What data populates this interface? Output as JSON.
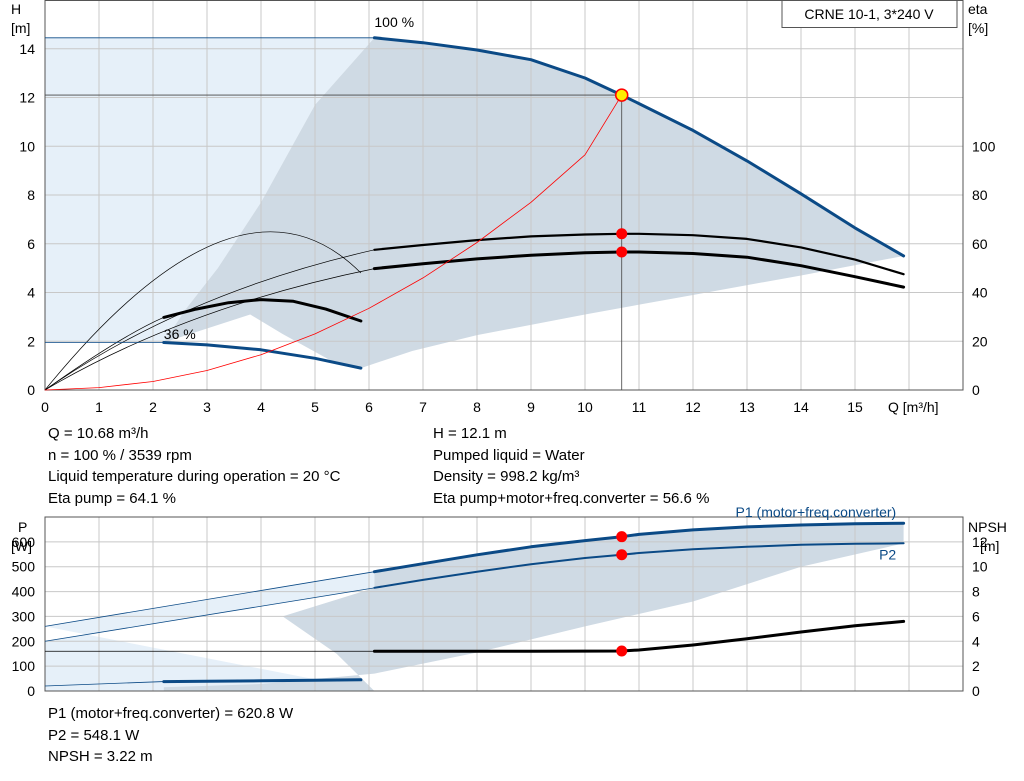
{
  "title": "CRNE 10-1, 3*240 V",
  "colors": {
    "blue": "#0b4a86",
    "area_dark": "#cfdae4",
    "area_light": "#e6f0f9",
    "grid": "#c8c8c8",
    "operating_point": "#ff0000",
    "duty_marker_fill": "#ffee00"
  },
  "info_top_left": [
    "Q = 10.68 m³/h",
    "n = 100 % / 3539 rpm",
    "Liquid temperature during operation = 20 °C",
    "Eta pump = 64.1 %"
  ],
  "info_top_right": [
    "H = 12.1 m",
    "Pumped liquid = Water",
    "Density = 998.2 kg/m³",
    "Eta pump+motor+freq.converter = 56.6 %"
  ],
  "info_bottom": [
    "P1 (motor+freq.converter) = 620.8 W",
    "P2 = 548.1 W",
    "NPSH = 3.22 m"
  ],
  "chart_data": [
    {
      "type": "line",
      "name": "head_efficiency",
      "xlabel": "Q [m³/h]",
      "ylabel": [
        "H",
        "[m]"
      ],
      "y2label": [
        "eta",
        "[%]"
      ],
      "xlim": [
        0,
        17
      ],
      "ylim": [
        0,
        16
      ],
      "y2lim": [
        0,
        160
      ],
      "x_ticks": [
        0,
        1,
        2,
        3,
        4,
        5,
        6,
        7,
        8,
        9,
        10,
        11,
        12,
        13,
        14,
        15
      ],
      "y_ticks": [
        0,
        2,
        4,
        6,
        8,
        10,
        12,
        14
      ],
      "y2_ticks": [
        0,
        20,
        40,
        60,
        80,
        100
      ],
      "grid": true,
      "annotations": [
        {
          "text": "100 %",
          "x": 6.1,
          "y": 14.9
        },
        {
          "text": "36 %",
          "x": 2.2,
          "y": 2.1
        }
      ],
      "series": [
        {
          "key": "H100",
          "axis": "left",
          "color": "#0b4a86",
          "x": [
            6.1,
            7,
            8,
            9,
            10,
            10.68,
            11,
            12,
            13,
            14,
            15,
            15.9
          ],
          "y": [
            14.45,
            14.25,
            13.95,
            13.55,
            12.8,
            12.1,
            11.75,
            10.65,
            9.4,
            8.05,
            6.65,
            5.5
          ]
        },
        {
          "key": "H36",
          "axis": "left",
          "color": "#0b4a86",
          "x": [
            2.2,
            3,
            4,
            5,
            5.85
          ],
          "y": [
            1.95,
            1.85,
            1.65,
            1.3,
            0.9
          ]
        },
        {
          "key": "EtaSys100",
          "axis": "right",
          "color": "#000000",
          "x": [
            6.1,
            7,
            8,
            9,
            10,
            10.68,
            11,
            12,
            13,
            14,
            15,
            15.9
          ],
          "y": [
            57.5,
            59.5,
            61.5,
            63,
            63.8,
            64.1,
            64.1,
            63.5,
            62,
            58.5,
            53.5,
            47.5
          ]
        },
        {
          "key": "EtaPump100",
          "axis": "right",
          "color": "#000000",
          "x": [
            6.1,
            7,
            8,
            9,
            10,
            10.68,
            11,
            12,
            13,
            14,
            15,
            15.9
          ],
          "y": [
            49.8,
            51.8,
            53.8,
            55.3,
            56.3,
            56.6,
            56.6,
            56,
            54.5,
            51,
            46.5,
            42.2
          ]
        },
        {
          "key": "Eta36",
          "axis": "right",
          "color": "#000000",
          "x": [
            2.2,
            2.8,
            3.4,
            4,
            4.6,
            5.2,
            5.85
          ],
          "y": [
            29.8,
            33.2,
            35.8,
            37.1,
            36.4,
            33.2,
            28.3
          ]
        },
        {
          "key": "SystemCurve",
          "axis": "left",
          "color": "#ff0000",
          "x": [
            0,
            1,
            2,
            3,
            4,
            5,
            6,
            7,
            8,
            9,
            10,
            10.68
          ],
          "y": [
            0,
            0.1,
            0.35,
            0.8,
            1.45,
            2.3,
            3.35,
            4.6,
            6.05,
            7.7,
            9.65,
            12.1
          ]
        }
      ],
      "reference_lines": [
        {
          "key": "H14.5",
          "axis": "left",
          "x": [
            0,
            6.1
          ],
          "y": [
            14.45,
            14.45
          ]
        },
        {
          "key": "H36ref",
          "axis": "left",
          "x": [
            0,
            2.2
          ],
          "y": [
            1.95,
            1.95
          ]
        }
      ],
      "duty_point": {
        "x": 10.68,
        "H": 12.1
      },
      "operating_points": [
        {
          "axis": "right",
          "x": 10.68,
          "y": 64.1
        },
        {
          "axis": "right",
          "x": 10.68,
          "y": 56.6
        }
      ]
    },
    {
      "type": "line",
      "name": "power_npsh",
      "ylabel": [
        "P",
        "[W]"
      ],
      "y2label": [
        "NPSH",
        "[m]"
      ],
      "xlim": [
        0,
        17
      ],
      "ylim": [
        0,
        700
      ],
      "y2lim": [
        0,
        14
      ],
      "y_ticks": [
        0,
        100,
        200,
        300,
        400,
        500,
        600
      ],
      "y2_ticks": [
        0,
        2,
        4,
        6,
        8,
        10,
        12
      ],
      "grid": true,
      "series_labels": [
        {
          "text": "P1 (motor+freq.converter)",
          "x": 15.8,
          "y": 675
        },
        {
          "text": "P2",
          "x": 15.8,
          "y": 505
        }
      ],
      "series": [
        {
          "key": "P1",
          "axis": "left",
          "color": "#0b4a86",
          "x": [
            6.1,
            7,
            8,
            9,
            10,
            10.68,
            11,
            12,
            13,
            14,
            15,
            15.9
          ],
          "y": [
            480,
            512,
            548,
            580,
            605,
            620.8,
            630,
            648,
            660,
            668,
            673,
            675
          ]
        },
        {
          "key": "P2",
          "axis": "left",
          "color": "#0b4a86",
          "x": [
            6.1,
            7,
            8,
            9,
            10,
            10.68,
            11,
            12,
            13,
            14,
            15,
            15.9
          ],
          "y": [
            415,
            447,
            480,
            510,
            535,
            548.1,
            555,
            570,
            580,
            588,
            592,
            594
          ]
        },
        {
          "key": "P1low",
          "axis": "left",
          "color": "#0b4a86",
          "x": [
            2.2,
            3,
            4,
            5,
            5.85
          ],
          "y": [
            38,
            39,
            41,
            43,
            45
          ]
        },
        {
          "key": "NPSH",
          "axis": "right",
          "color": "#000000",
          "x": [
            6.1,
            7,
            8,
            9,
            10,
            10.68,
            11,
            12,
            13,
            14,
            15,
            15.9
          ],
          "y": [
            3.2,
            3.2,
            3.2,
            3.2,
            3.21,
            3.22,
            3.3,
            3.7,
            4.2,
            4.75,
            5.25,
            5.6
          ]
        }
      ],
      "operating_points": [
        {
          "axis": "left",
          "x": 10.68,
          "y": 620.8
        },
        {
          "axis": "left",
          "x": 10.68,
          "y": 548.1
        },
        {
          "axis": "right",
          "x": 10.68,
          "y": 3.22
        }
      ]
    }
  ]
}
